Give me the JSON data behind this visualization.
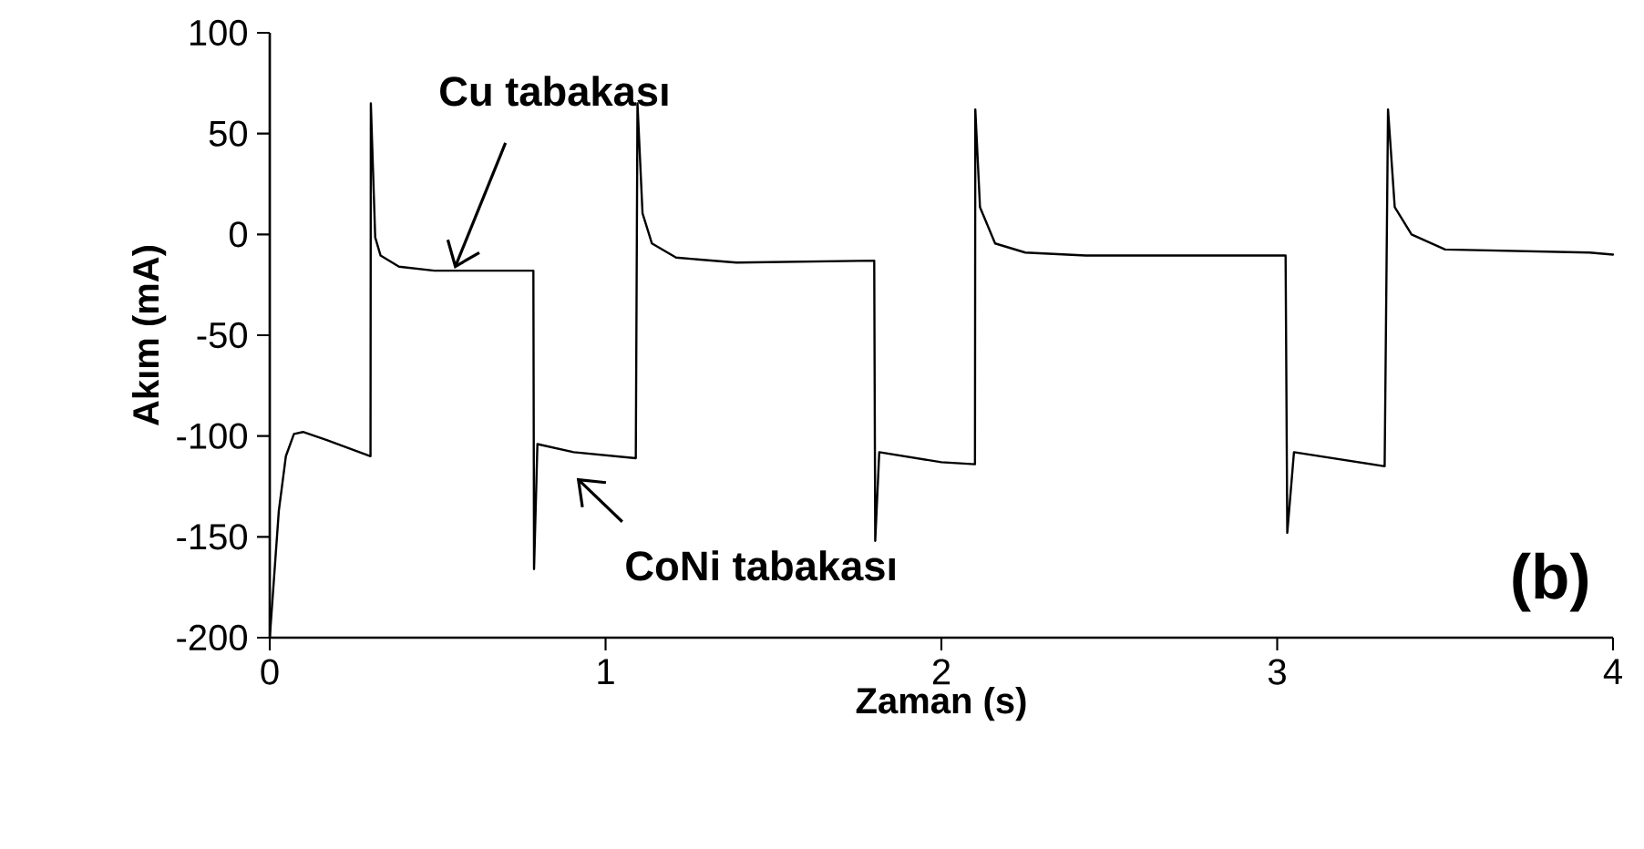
{
  "chart_data": {
    "type": "line",
    "xlabel": "Zaman (s)",
    "ylabel": "Akım (mA)",
    "x": [
      0,
      0.027,
      0.048,
      0.072,
      0.099,
      0.17,
      0.3,
      0.301,
      0.314,
      0.33,
      0.385,
      0.49,
      0.785,
      0.787,
      0.797,
      0.905,
      1.09,
      1.095,
      1.11,
      1.138,
      1.21,
      1.39,
      1.8,
      1.803,
      1.815,
      2.0,
      2.1,
      2.101,
      2.115,
      2.16,
      2.25,
      2.43,
      3.025,
      3.03,
      3.05,
      3.32,
      3.33,
      3.35,
      3.4,
      3.5,
      3.93,
      4.0
    ],
    "values": [
      -200,
      -137,
      -110,
      -99,
      -98,
      -102,
      -110,
      65,
      -1.5,
      -10.5,
      -16,
      -18,
      -18,
      -166,
      -104,
      -108,
      -111,
      65,
      10.5,
      -4.5,
      -11.5,
      -14,
      -13,
      -152,
      -108,
      -113,
      -114,
      62,
      13.5,
      -4.5,
      -9,
      -10.5,
      -10.5,
      -148,
      -108,
      -115,
      62,
      13.5,
      0,
      -7.5,
      -9,
      -10
    ],
    "color": "#000000",
    "line_style": "solid",
    "xlim": [
      0,
      4
    ],
    "ylim": [
      -200,
      100
    ],
    "xticks": [
      0,
      1,
      2,
      3,
      4
    ],
    "yticks": [
      -200,
      -150,
      -100,
      -50,
      0,
      50,
      100
    ],
    "grid": false,
    "annotations": [
      {
        "text": "Cu tabakası",
        "x": 0.55,
        "y": -17
      },
      {
        "text": "CoNi tabakası",
        "x": 0.914,
        "y": -110
      },
      "(b)"
    ]
  }
}
